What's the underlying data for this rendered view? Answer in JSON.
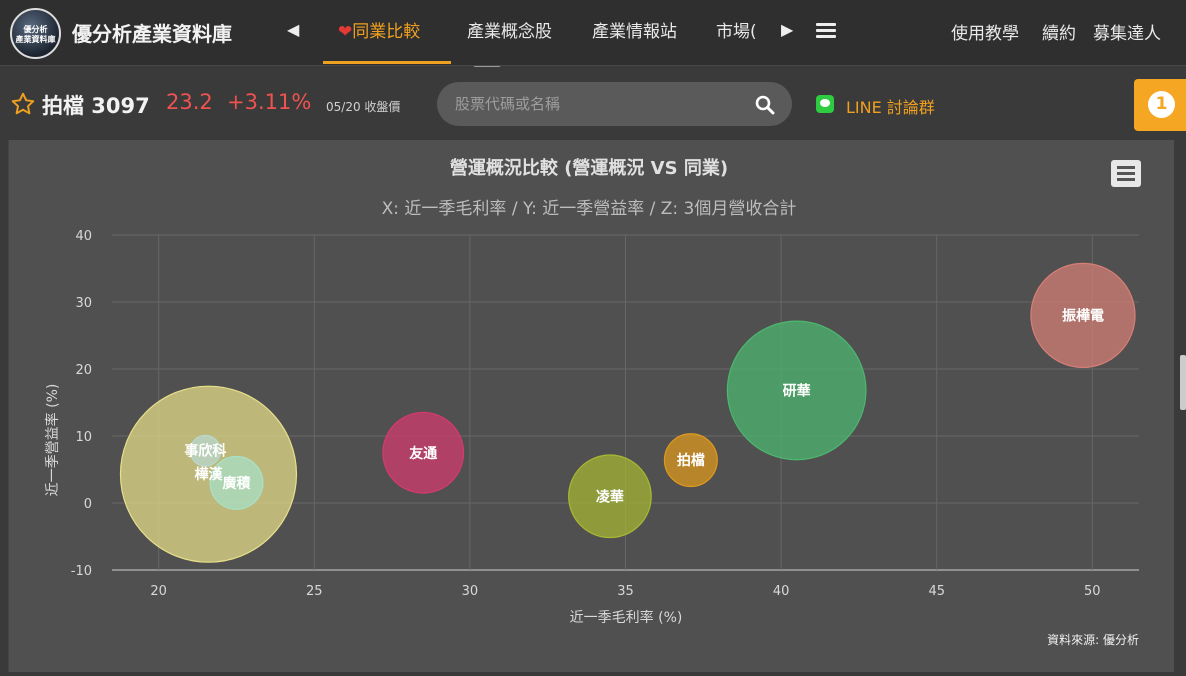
{
  "header": {
    "logo_text": [
      "優分析",
      "產業資料庫"
    ],
    "brand": "優分析產業資料庫",
    "nav": [
      {
        "label": "同業比較",
        "active": true
      },
      {
        "label": "產業概念股",
        "active": false
      },
      {
        "label": "產業情報站",
        "active": false
      },
      {
        "label": "市場(",
        "active": false
      }
    ],
    "right_links": [
      "使用教學",
      "續約",
      "募集達人"
    ]
  },
  "quote": {
    "name": "拍檔 3097",
    "price": "23.2",
    "change": "+3.11%",
    "date": "05/20 收盤價"
  },
  "search": {
    "placeholder": "股票代碼或名稱"
  },
  "line_link": "LINE 討論群",
  "notification_count": "1",
  "colors": {
    "accent": "#f0a020",
    "price_up": "#ef5350"
  },
  "chart_data": {
    "type": "bubble",
    "title": "營運概況比較 (營運概況 VS 同業)",
    "subtitle": "X: 近一季毛利率 / Y: 近一季營益率 / Z: 3個月營收合計",
    "xlabel": "近一季毛利率 (%)",
    "ylabel": "近一季營益率 (%)",
    "xlim": [
      18.5,
      51.5
    ],
    "ylim": [
      -10,
      40
    ],
    "xticks": [
      20,
      25,
      30,
      35,
      40,
      45,
      50
    ],
    "yticks": [
      -10,
      0,
      10,
      20,
      30,
      40
    ],
    "credit": "資料來源: 優分析",
    "series": [
      {
        "label": "樺漢",
        "x": 21.6,
        "y": 4.3,
        "z": 100,
        "color": "#e8e08a"
      },
      {
        "label": "事欣科",
        "x": 21.5,
        "y": 7.8,
        "z": 3,
        "color": "#b8d8d0"
      },
      {
        "label": "廣積",
        "x": 22.5,
        "y": 3.0,
        "z": 9,
        "color": "#a8e0c8"
      },
      {
        "label": "友通",
        "x": 28.5,
        "y": 7.5,
        "z": 21,
        "color": "#d63a6e"
      },
      {
        "label": "凌華",
        "x": 34.5,
        "y": 1.0,
        "z": 22,
        "color": "#a8b832"
      },
      {
        "label": "拍檔",
        "x": 37.1,
        "y": 6.4,
        "z": 9,
        "color": "#e09a1c"
      },
      {
        "label": "研華",
        "x": 40.5,
        "y": 16.8,
        "z": 62,
        "color": "#4cb870"
      },
      {
        "label": "振樺電",
        "x": 49.7,
        "y": 28.0,
        "z": 35,
        "color": "#d77f76"
      }
    ]
  }
}
